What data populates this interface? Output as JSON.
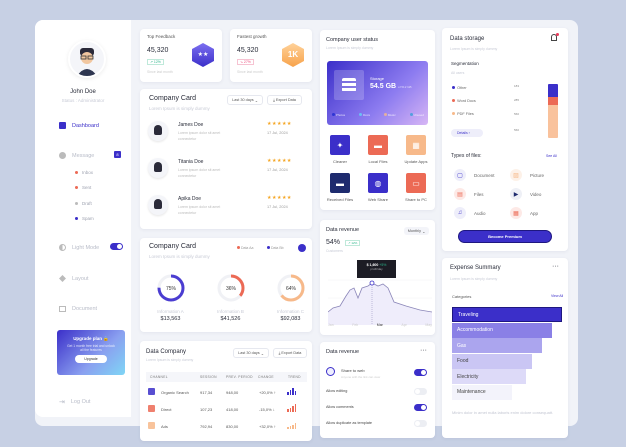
{
  "profile": {
    "name": "John Doe",
    "status": "Status : Administrator"
  },
  "sidebar": {
    "dashboard": "Dashboard",
    "message": "Message",
    "message_badge": "8",
    "sub": [
      "Inbox",
      "Sent",
      "Draft",
      "Spam"
    ],
    "light_mode": "Light Mode",
    "layout": "Layout",
    "document": "Document",
    "logout": "Log Out"
  },
  "upgrade": {
    "title": "Upgrade plan 🔒",
    "text": "Get 1 month free trial and unlock all the features",
    "button": "Upgrade"
  },
  "top_feedback": {
    "title": "Top Feedback",
    "value": "45,320",
    "badge": "↗ 12%",
    "note": "Since last month"
  },
  "fastest_growth": {
    "title": "Fastest growth",
    "value": "45,320",
    "badge": "↘ 27%",
    "note": "Since last month",
    "icon_text": "1K"
  },
  "company_card": {
    "title": "Company Card",
    "subtitle": "Lorem Ipsum is simply dummy",
    "filter": "Last 30 days",
    "export": "Export Data",
    "people": [
      {
        "name": "James Doe",
        "text": "Lorem ipsum dolor sit amet connectetur",
        "date": "17 Jul, 2024",
        "stars": 5
      },
      {
        "name": "Titania Doe",
        "text": "Lorem ipsum dolor sit amet connectetur",
        "date": "17 Jul, 2024",
        "stars": 5
      },
      {
        "name": "Apika Doe",
        "text": "Lorem ipsum dolor sit amet connectetur",
        "date": "17 Jul, 2024",
        "stars": 5
      }
    ]
  },
  "company_card2": {
    "title": "Company Card",
    "subtitle": "Lorem Ipsum is simply dummy",
    "legend": [
      "Data Aa",
      "Data Bb"
    ],
    "donuts": [
      {
        "pct": "75%",
        "value": 75,
        "label": "Information A",
        "amount": "$13,563",
        "color": "#4b3dd1"
      },
      {
        "pct": "36%",
        "value": 36,
        "label": "Information B",
        "amount": "$41,526",
        "color": "#ec6a55"
      },
      {
        "pct": "64%",
        "value": 64,
        "label": "Information C",
        "amount": "$92,083",
        "color": "#f7b98a"
      }
    ]
  },
  "data_company": {
    "title": "Data Company",
    "subtitle": "Lorem Ipsum is simply dummy",
    "filter": "Last 30 days",
    "export": "Export Data",
    "columns": [
      "CHANNEL",
      "SESSION",
      "PREV. PERIOD",
      "CHANGE",
      "TREND"
    ],
    "rows": [
      {
        "channel": "Organic Search",
        "session": "917,34",
        "prev": "948,00",
        "change": "+20,0% ↑",
        "color": "#3b2fc9"
      },
      {
        "channel": "Direct",
        "session": "107,23",
        "prev": "418,00",
        "change": "-15,0% ↓",
        "color": "#ec6a55"
      },
      {
        "channel": "Ads",
        "session": "792,94",
        "prev": "830,00",
        "change": "+32,0% ↑",
        "color": "#f7b98a"
      }
    ]
  },
  "user_status": {
    "title": "Company user status",
    "subtitle": "Lorem Ipsum is simply dummy",
    "storage_label": "Storage",
    "storage_value": "54.5 GB",
    "storage_of": "of 512 GB",
    "legend": [
      "Photos",
      "Docs",
      "Music",
      "Unused"
    ],
    "tiles": [
      {
        "label": "Cleaner",
        "color": "#3b2fc9",
        "icon": "sparkle-icon"
      },
      {
        "label": "Local Files",
        "color": "#ec6a55",
        "icon": "folder-icon"
      },
      {
        "label": "Update Apps",
        "color": "#f7b98a",
        "icon": "grid-icon"
      },
      {
        "label": "Received Files",
        "color": "#1e2b6e",
        "icon": "folder-icon"
      },
      {
        "label": "Web Share",
        "color": "#3b2fc9",
        "icon": "globe-icon"
      },
      {
        "label": "Share to PC",
        "color": "#ec6a55",
        "icon": "monitor-icon"
      }
    ]
  },
  "revenue": {
    "title": "Data revenue",
    "filter": "Monthly",
    "value": "54%",
    "badge": "↗ 12%",
    "caption": "Customers",
    "tooltip_value": "$ 1,600",
    "tooltip_badge": "+5%",
    "tooltip_caption": "profit/day",
    "months": [
      "Jan",
      "Feb",
      "Mar",
      "Apr",
      "May"
    ]
  },
  "revenue_settings": {
    "title": "Data revenue",
    "share_title": "Share to web",
    "share_sub": "Anyone with the link can view",
    "items": [
      {
        "label": "Allow editing",
        "on": false
      },
      {
        "label": "Allow comments",
        "on": true
      },
      {
        "label": "Allow duplicate as template",
        "on": false
      }
    ]
  },
  "storage": {
    "title": "Data storage",
    "subtitle": "Lorem Ipsum is simply dummy",
    "segmentation": "Segmentation",
    "all_users": "All users",
    "segments": [
      {
        "label": "Other",
        "color": "#3b2fc9",
        "value": "183"
      },
      {
        "label": "Word Docs",
        "color": "#ec6a55",
        "value": "285"
      },
      {
        "label": "PDF Files",
        "color": "#f7b98a",
        "value": "560"
      }
    ],
    "axis_extra": "560",
    "details": "Details",
    "types_title": "Types of files:",
    "see_all": "See All",
    "types": [
      "Document",
      "Picture",
      "Files",
      "Video",
      "Audio",
      "App"
    ],
    "premium": "Become Premium"
  },
  "expense": {
    "title": "Expense Summary",
    "subtitle": "Lorem Ipsum is simply dummy",
    "categories": "Categories",
    "view_all": "View All",
    "items": [
      "Traveling",
      "Accommodation",
      "Gas",
      "Food",
      "Electricity",
      "Maintenance"
    ],
    "note": "Minim dolor in amet nulla laboris enim dolore consequatt."
  }
}
